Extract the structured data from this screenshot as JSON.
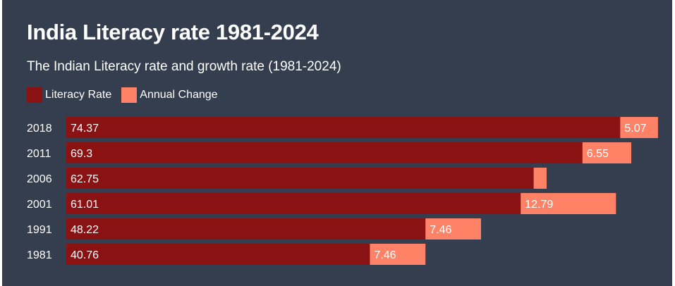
{
  "chart_data": {
    "type": "bar",
    "orientation": "horizontal",
    "stacked": true,
    "title": "India Literacy rate 1981-2024",
    "subtitle": "The Indian Literacy rate and growth rate (1981-2024)",
    "categories": [
      "2018",
      "2011",
      "2006",
      "2001",
      "1991",
      "1981"
    ],
    "series": [
      {
        "name": "Literacy Rate",
        "color": "#8a1212",
        "values": [
          74.37,
          69.3,
          62.75,
          61.01,
          48.22,
          40.76
        ],
        "labels": [
          "74.37",
          "69.3",
          "62.75",
          "61.01",
          "48.22",
          "40.76"
        ]
      },
      {
        "name": "Annual Change",
        "color": "#ff8266",
        "values": [
          5.07,
          6.55,
          1.74,
          12.79,
          7.46,
          7.46
        ],
        "labels": [
          "5.07",
          "6.55",
          "",
          "12.79",
          "7.46",
          "7.46"
        ]
      }
    ],
    "xlim": [
      0,
      80
    ],
    "grid": false,
    "legend_position": "top-left"
  }
}
